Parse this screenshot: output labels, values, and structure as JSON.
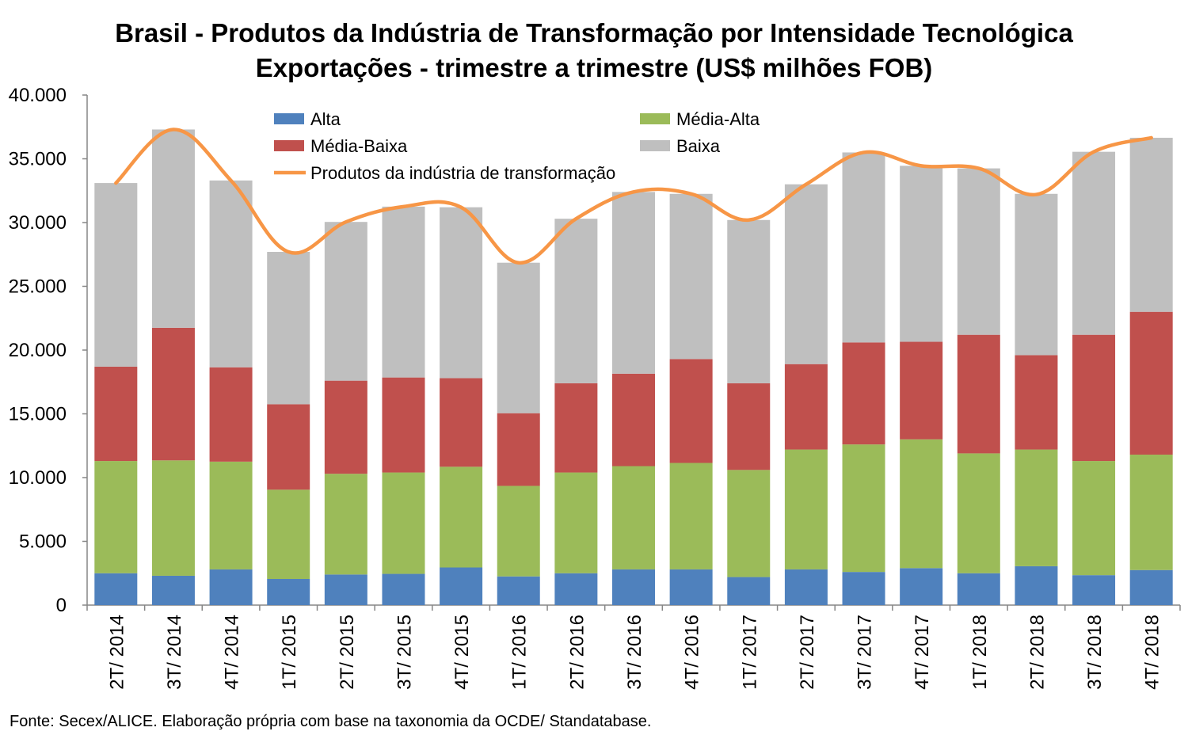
{
  "chart_data": {
    "type": "bar",
    "stacked": true,
    "title": "Brasil - Produtos da Indústria de Transformação por Intensidade Tecnológica",
    "subtitle": "Exportações - trimestre a trimestre (US$ milhões FOB)",
    "ylim": [
      0,
      40000
    ],
    "yticks": [
      0,
      5000,
      10000,
      15000,
      20000,
      25000,
      30000,
      35000,
      40000
    ],
    "ytick_labels": [
      "0",
      "5.000",
      "10.000",
      "15.000",
      "20.000",
      "25.000",
      "30.000",
      "35.000",
      "40.000"
    ],
    "grid": false,
    "legend_position": "top",
    "categories": [
      "2T/ 2014",
      "3T/ 2014",
      "4T/ 2014",
      "1T/ 2015",
      "2T/ 2015",
      "3T/ 2015",
      "4T/ 2015",
      "1T/ 2016",
      "2T/ 2016",
      "3T/ 2016",
      "4T/ 2016",
      "1T/ 2017",
      "2T/ 2017",
      "3T/ 2017",
      "4T/ 2017",
      "1T/ 2018",
      "2T/ 2018",
      "3T/ 2018",
      "4T/ 2018"
    ],
    "series": [
      {
        "name": "Alta",
        "color": "#4f81bd",
        "values": [
          2500,
          2300,
          2800,
          2050,
          2400,
          2450,
          2950,
          2250,
          2500,
          2800,
          2800,
          2200,
          2800,
          2600,
          2900,
          2500,
          3050,
          2350,
          2750
        ]
      },
      {
        "name": "Média-Alta",
        "color": "#9bbb59",
        "values": [
          8800,
          9050,
          8450,
          7000,
          7900,
          7950,
          7900,
          7100,
          7900,
          8100,
          8350,
          8400,
          9400,
          10000,
          10100,
          9400,
          9150,
          8950,
          9050
        ]
      },
      {
        "name": "Média-Baixa",
        "color": "#c0504d",
        "values": [
          7400,
          10400,
          7400,
          6700,
          7300,
          7450,
          6950,
          5700,
          7000,
          7250,
          8150,
          6800,
          6700,
          8000,
          7650,
          9300,
          7400,
          9900,
          11200
        ]
      },
      {
        "name": "Baixa",
        "color": "#bfbfbf",
        "values": [
          14400,
          15550,
          14650,
          11950,
          12450,
          13400,
          13400,
          11800,
          12900,
          14250,
          12950,
          12800,
          14100,
          14900,
          13800,
          13050,
          12650,
          14350,
          13650
        ]
      }
    ],
    "line_series": {
      "name": "Produtos da indústria de transformação",
      "color": "#f79646",
      "values": [
        33100,
        37300,
        33300,
        27700,
        30050,
        31250,
        31200,
        26850,
        30300,
        32400,
        32250,
        30200,
        33000,
        35500,
        34450,
        34250,
        32200,
        35550,
        36650
      ]
    }
  },
  "footer": {
    "source": "Fonte: Secex/ALICE. Elaboração própria com base na taxonomia da OCDE/ Standatabase."
  }
}
